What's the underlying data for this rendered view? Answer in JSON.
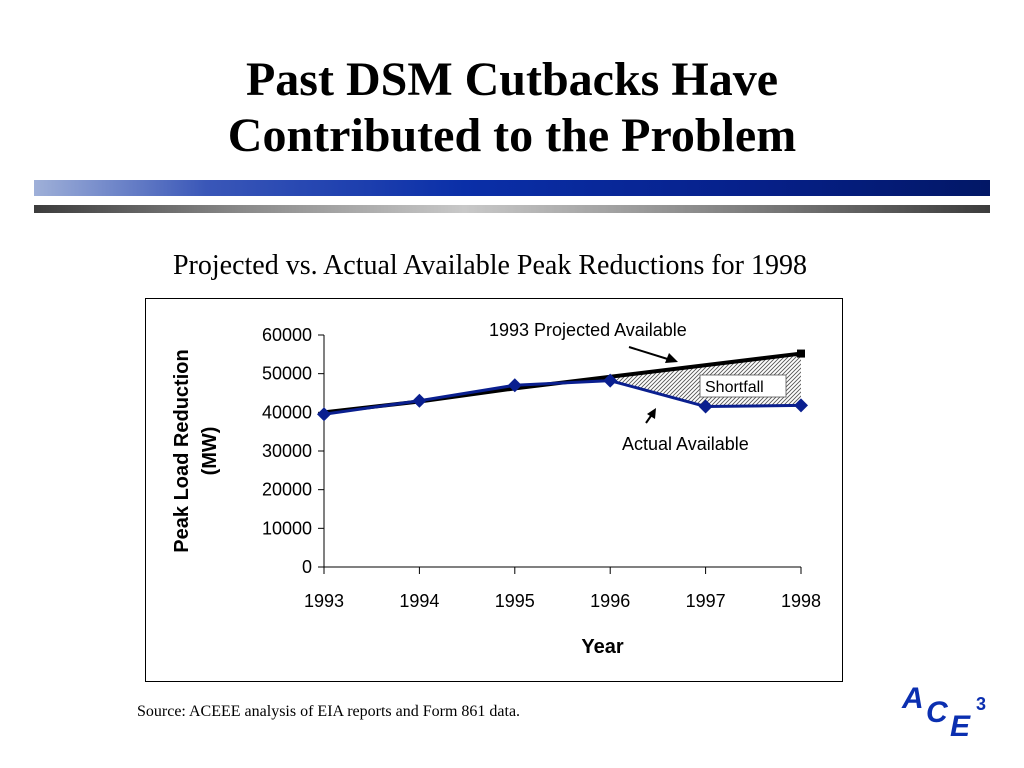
{
  "slide": {
    "title_line1": "Past DSM Cutbacks Have",
    "title_line2": "Contributed to the Problem",
    "subtitle": "Projected vs. Actual Available Peak Reductions for 1998",
    "source": "Source: ACEEE analysis of EIA reports and Form 861 data.",
    "logo_text": "ACE",
    "logo_superscript": "3",
    "colors": {
      "accent_blue": "#0a2fa8",
      "logo_blue": "#0b2fb0",
      "actual_series": "#0a1f8f",
      "projected_series": "#000000"
    }
  },
  "chart_data": {
    "type": "line",
    "x": [
      1993,
      1994,
      1995,
      1996,
      1997,
      1998
    ],
    "xlabel": "Year",
    "ylabel": "Peak Load Reduction (MW)",
    "ylim": [
      0,
      60000
    ],
    "yticks": [
      0,
      10000,
      20000,
      30000,
      40000,
      50000,
      60000
    ],
    "xlim": [
      1993,
      1998
    ],
    "grid": false,
    "series": [
      {
        "name": "Actual Available",
        "values": [
          39500,
          43000,
          47000,
          48200,
          41500,
          41800
        ],
        "color": "#0a1f8f",
        "marker": "diamond"
      },
      {
        "name": "1993 Projected Available",
        "values": [
          40000,
          42800,
          46200,
          null,
          null,
          55200
        ],
        "color": "#000000",
        "marker": "square",
        "drawn_as": "line from 1993 to 1998 with square marker at 1998",
        "line_points": [
          [
            1993,
            40000
          ],
          [
            1994,
            42800
          ],
          [
            1995,
            46200
          ],
          [
            1998,
            55200
          ]
        ]
      }
    ],
    "annotations": [
      {
        "text": "1993 Projected Available"
      },
      {
        "text": "Actual Available"
      },
      {
        "text": "Shortfall"
      }
    ]
  }
}
